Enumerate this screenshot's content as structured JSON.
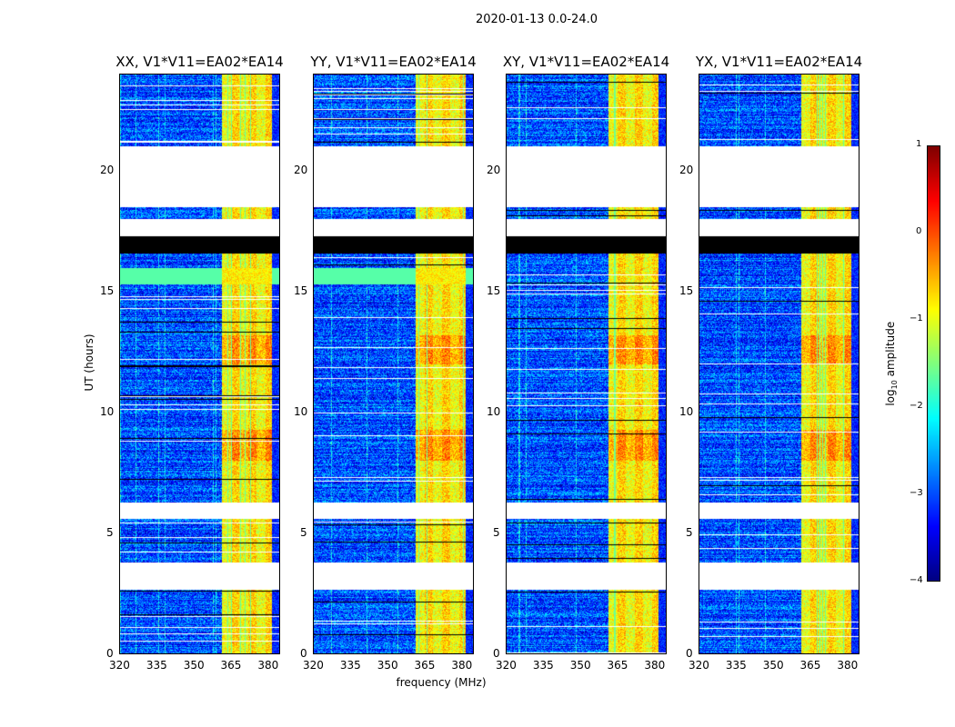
{
  "chart_data": {
    "type": "heatmap",
    "title": "2020-01-13 0.0-24.0",
    "xlabel": "frequency (MHz)",
    "ylabel": "UT (hours)",
    "xlim": [
      320,
      385
    ],
    "ylim": [
      0,
      24
    ],
    "xticks": [
      "320",
      "335",
      "350",
      "365",
      "380"
    ],
    "xtick_values": [
      320,
      335,
      350,
      365,
      380
    ],
    "yticks": [
      "0",
      "5",
      "10",
      "15",
      "20"
    ],
    "ytick_values": [
      0,
      5,
      10,
      15,
      20
    ],
    "colorbar": {
      "label_prefix": "log",
      "label_sub": "10",
      "label_suffix": " amplitude",
      "range": [
        -4,
        1
      ],
      "ticks": [
        "1",
        "0",
        "−1",
        "−2",
        "−3",
        "−4"
      ],
      "tick_values": [
        1,
        0,
        -1,
        -2,
        -3,
        -4
      ],
      "colormap": "jet"
    },
    "panels": [
      {
        "title": "XX, V1*V11=EA02*EA14",
        "flat_band": [
          15.3,
          16.0
        ]
      },
      {
        "title": "YY, V1*V11=EA02*EA14",
        "flat_band": [
          15.3,
          16.0
        ]
      },
      {
        "title": "XY, V1*V11=EA02*EA14",
        "flat_band": null
      },
      {
        "title": "YX, V1*V11=EA02*EA14",
        "flat_band": null
      }
    ],
    "bright_band_mhz": [
      361,
      381
    ],
    "bright_level": -0.8,
    "background_level": -3.0,
    "time_segments": [
      {
        "from": 0,
        "to": 2.7,
        "state": "data"
      },
      {
        "from": 2.7,
        "to": 3.8,
        "state": "blank"
      },
      {
        "from": 3.8,
        "to": 5.6,
        "state": "data"
      },
      {
        "from": 5.6,
        "to": 6.3,
        "state": "blank"
      },
      {
        "from": 6.3,
        "to": 16.6,
        "state": "data"
      },
      {
        "from": 16.6,
        "to": 17.3,
        "state": "flagged"
      },
      {
        "from": 17.3,
        "to": 18.0,
        "state": "blank"
      },
      {
        "from": 18.0,
        "to": 18.5,
        "state": "data"
      },
      {
        "from": 18.5,
        "to": 21.0,
        "state": "blank"
      },
      {
        "from": 21.0,
        "to": 24.0,
        "state": "data"
      }
    ]
  }
}
